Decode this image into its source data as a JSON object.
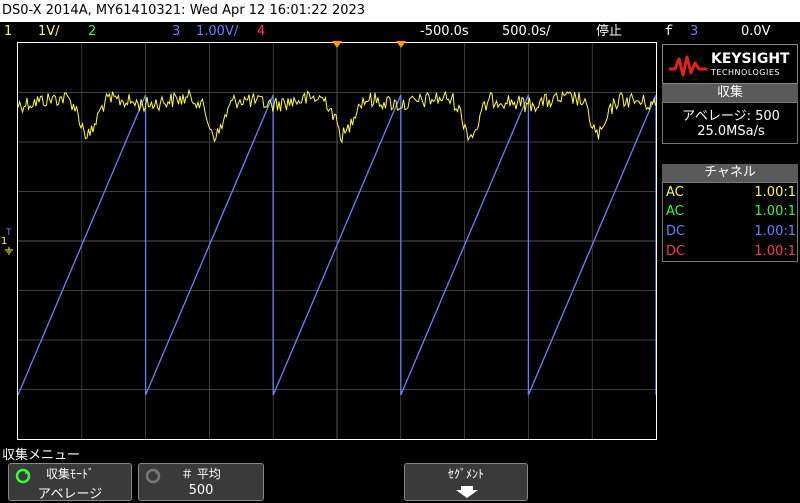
{
  "title_bar": "DS0-X 2014A, MY61410321: Wed Apr 12 16:01:22 2023",
  "status": {
    "ch1_num": "1",
    "ch1_scale": "1V/",
    "ch2_num": "2",
    "ch3_num": "3",
    "ch3_scale": "1.00V/",
    "ch4_num": "4",
    "time_delay": "-500.0s",
    "time_scale": "500.0s/",
    "run_state": "停止",
    "trigger_channel": "3",
    "trigger_level": "0.0V"
  },
  "logo": {
    "brand": "KEYSIGHT",
    "sub": "TECHNOLOGIES"
  },
  "acquisition": {
    "header": "収集",
    "mode_line": "アベレージ: 500",
    "sample_rate": "25.0MSa/s"
  },
  "channels": {
    "header": "チャネル",
    "rows": [
      {
        "coupling": "AC",
        "probe": "1.00:1",
        "color": "#ffff33"
      },
      {
        "coupling": "AC",
        "probe": "1.00:1",
        "color": "#33ff33"
      },
      {
        "coupling": "DC",
        "probe": "1.00:1",
        "color": "#6f7dff"
      },
      {
        "coupling": "DC",
        "probe": "1.00:1",
        "color": "#ff3366"
      }
    ]
  },
  "menu": {
    "title": "収集メニュー",
    "softkeys": [
      {
        "label": "収集ﾓｰﾄﾞ",
        "value": "アベレージ"
      },
      {
        "label": "＃ 平均",
        "value": "500"
      },
      {
        "label": "ｾｸﾞﾒﾝﾄ",
        "value": ""
      }
    ]
  },
  "screen_markers": {
    "ch1_marker": "1",
    "trigger_marker": "T"
  },
  "colors": {
    "ch1": "#ffff33",
    "ch3": "#6f7dff",
    "grid": "#555555"
  }
}
